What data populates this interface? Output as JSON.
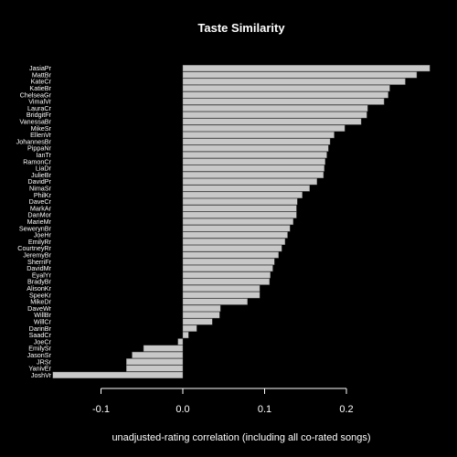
{
  "chart_data": {
    "type": "bar",
    "orientation": "horizontal",
    "title": "Taste Similarity",
    "xlabel": "unadjusted-rating correlation (including all co-rated songs)",
    "ylabel": "",
    "xlim": [
      -0.17,
      0.3
    ],
    "xticks": [
      -0.1,
      0.0,
      0.1,
      0.2
    ],
    "xtick_labels": [
      "-0.1",
      "0.0",
      "0.1",
      "0.2"
    ],
    "categories": [
      "JasiaPr",
      "MattBr",
      "KateCr",
      "KatieBr",
      "ChelseaGr",
      "VimalVr",
      "LauraCr",
      "BridgitFr",
      "VanessaBr",
      "MikeSr",
      "EllenVr",
      "JohannesBr",
      "PippaNr",
      "IanTr",
      "RamonCr",
      "LiaDr",
      "JulieBr",
      "DavidPr",
      "NimaSr",
      "PhilKr",
      "DaveCr",
      "MarkAr",
      "DanMor",
      "MarieMr",
      "SewerynBr",
      "JoeHr",
      "EmilyRr",
      "CourtneyRr",
      "JeremyBr",
      "SherriFr",
      "DavidMr",
      "EyalYr",
      "BradyBr",
      "AlisonKr",
      "SpeeKr",
      "MikeDr",
      "DaveWr",
      "WillBr",
      "WillCr",
      "DarinBr",
      "SaadCr",
      "JoeCr",
      "EmilySr",
      "JasonSr",
      "JRSr",
      "YanivEr",
      "JoshVr"
    ],
    "values": [
      0.302,
      0.286,
      0.272,
      0.253,
      0.251,
      0.246,
      0.226,
      0.225,
      0.218,
      0.198,
      0.185,
      0.18,
      0.178,
      0.176,
      0.174,
      0.173,
      0.172,
      0.164,
      0.155,
      0.146,
      0.14,
      0.139,
      0.139,
      0.135,
      0.131,
      0.128,
      0.125,
      0.121,
      0.117,
      0.112,
      0.11,
      0.107,
      0.106,
      0.094,
      0.094,
      0.079,
      0.046,
      0.045,
      0.036,
      0.017,
      0.007,
      -0.006,
      -0.048,
      -0.062,
      -0.069,
      -0.069,
      -0.159
    ],
    "colors": {
      "background": "#000000",
      "bar_fill": "#c8c8c8",
      "bar_edge": "#5a5a5a",
      "text": "#ffffff"
    },
    "grid": false,
    "legend": "none"
  }
}
